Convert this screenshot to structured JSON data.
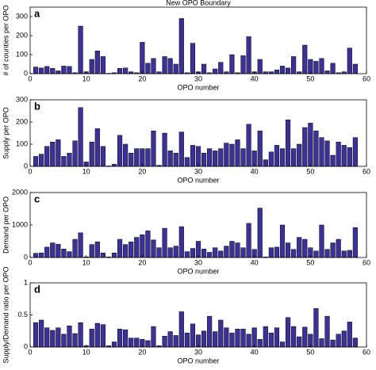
{
  "chart_data": [
    {
      "type": "bar",
      "title": "New OPO Boundary",
      "panel_label": "a",
      "ylabel": "# of counties per OPO",
      "xlabel": "OPO number",
      "color": "#3b3199",
      "x": [
        1,
        2,
        3,
        4,
        5,
        6,
        7,
        8,
        9,
        10,
        11,
        12,
        13,
        14,
        15,
        16,
        17,
        18,
        19,
        20,
        21,
        22,
        23,
        24,
        25,
        26,
        27,
        28,
        29,
        30,
        31,
        32,
        33,
        34,
        35,
        36,
        37,
        38,
        39,
        40,
        41,
        42,
        43,
        44,
        45,
        46,
        47,
        48,
        49,
        50,
        51,
        52,
        53,
        54,
        55,
        56,
        57,
        58
      ],
      "values": [
        35,
        30,
        38,
        28,
        15,
        40,
        38,
        5,
        250,
        10,
        75,
        120,
        90,
        2,
        5,
        28,
        30,
        10,
        5,
        165,
        55,
        80,
        10,
        90,
        80,
        50,
        290,
        5,
        160,
        10,
        50,
        5,
        25,
        60,
        10,
        100,
        5,
        95,
        195,
        10,
        75,
        10,
        10,
        20,
        40,
        30,
        90,
        10,
        150,
        75,
        65,
        80,
        15,
        55,
        5,
        10,
        135,
        50
      ],
      "xlim": [
        0,
        60
      ],
      "xticks": [
        0,
        10,
        20,
        30,
        40,
        50,
        60
      ],
      "ylim": [
        0,
        350
      ],
      "yticks": [
        0,
        100,
        200,
        300
      ]
    },
    {
      "type": "bar",
      "panel_label": "b",
      "ylabel": "Supply per OPO",
      "xlabel": "OPO number",
      "color": "#3b3199",
      "x": [
        1,
        2,
        3,
        4,
        5,
        6,
        7,
        8,
        9,
        10,
        11,
        12,
        13,
        14,
        15,
        16,
        17,
        18,
        19,
        20,
        21,
        22,
        23,
        24,
        25,
        26,
        27,
        28,
        29,
        30,
        31,
        32,
        33,
        34,
        35,
        36,
        37,
        38,
        39,
        40,
        41,
        42,
        43,
        44,
        45,
        46,
        47,
        48,
        49,
        50,
        51,
        52,
        53,
        54,
        55,
        56,
        57,
        58
      ],
      "values": [
        45,
        55,
        90,
        110,
        120,
        45,
        60,
        115,
        265,
        20,
        110,
        170,
        90,
        2,
        10,
        140,
        100,
        60,
        80,
        80,
        80,
        160,
        5,
        150,
        70,
        60,
        155,
        40,
        95,
        90,
        60,
        80,
        70,
        80,
        105,
        100,
        120,
        80,
        190,
        70,
        160,
        30,
        65,
        95,
        80,
        210,
        80,
        100,
        175,
        195,
        160,
        130,
        115,
        50,
        110,
        95,
        85,
        130
      ],
      "xlim": [
        0,
        60
      ],
      "xticks": [
        0,
        10,
        20,
        30,
        40,
        50,
        60
      ],
      "ylim": [
        0,
        300
      ],
      "yticks": [
        0,
        100,
        200,
        300
      ]
    },
    {
      "type": "bar",
      "panel_label": "c",
      "ylabel": "Demand per OPO",
      "xlabel": "OPO number",
      "color": "#3b3199",
      "x": [
        1,
        2,
        3,
        4,
        5,
        6,
        7,
        8,
        9,
        10,
        11,
        12,
        13,
        14,
        15,
        16,
        17,
        18,
        19,
        20,
        21,
        22,
        23,
        24,
        25,
        26,
        27,
        28,
        29,
        30,
        31,
        32,
        33,
        34,
        35,
        36,
        37,
        38,
        39,
        40,
        41,
        42,
        43,
        44,
        45,
        46,
        47,
        48,
        49,
        50,
        51,
        52,
        53,
        54,
        55,
        56,
        57,
        58
      ],
      "values": [
        130,
        140,
        320,
        450,
        410,
        260,
        180,
        560,
        760,
        20,
        400,
        480,
        140,
        20,
        140,
        560,
        400,
        480,
        620,
        700,
        820,
        540,
        300,
        900,
        300,
        350,
        950,
        180,
        280,
        500,
        260,
        160,
        300,
        200,
        350,
        500,
        450,
        300,
        1050,
        250,
        1520,
        20,
        300,
        320,
        1000,
        450,
        250,
        620,
        560,
        300,
        200,
        1000,
        250,
        450,
        560,
        200,
        220,
        920
      ],
      "xlim": [
        0,
        60
      ],
      "xticks": [
        0,
        10,
        20,
        30,
        40,
        50,
        60
      ],
      "ylim": [
        0,
        2000
      ],
      "yticks": [
        0,
        1000,
        2000
      ]
    },
    {
      "type": "bar",
      "panel_label": "d",
      "ylabel": "Supply/Demand ratio per OPO",
      "xlabel": "OPO number",
      "color": "#3b3199",
      "x": [
        1,
        2,
        3,
        4,
        5,
        6,
        7,
        8,
        9,
        10,
        11,
        12,
        13,
        14,
        15,
        16,
        17,
        18,
        19,
        20,
        21,
        22,
        23,
        24,
        25,
        26,
        27,
        28,
        29,
        30,
        31,
        32,
        33,
        34,
        35,
        36,
        37,
        38,
        39,
        40,
        41,
        42,
        43,
        44,
        45,
        46,
        47,
        48,
        49,
        50,
        51,
        52,
        53,
        54,
        55,
        56,
        57,
        58
      ],
      "values": [
        0.38,
        0.42,
        0.3,
        0.26,
        0.3,
        0.2,
        0.33,
        0.21,
        0.38,
        0.02,
        0.28,
        0.37,
        0.35,
        0.02,
        0.08,
        0.28,
        0.27,
        0.14,
        0.14,
        0.12,
        0.1,
        0.32,
        0.02,
        0.17,
        0.24,
        0.18,
        0.55,
        0.22,
        0.36,
        0.19,
        0.25,
        0.48,
        0.24,
        0.42,
        0.3,
        0.22,
        0.28,
        0.28,
        0.2,
        0.3,
        0.12,
        0.32,
        0.22,
        0.3,
        0.08,
        0.46,
        0.32,
        0.16,
        0.31,
        0.2,
        0.6,
        0.13,
        0.48,
        0.11,
        0.2,
        0.25,
        0.39,
        0.14
      ],
      "xlim": [
        0,
        60
      ],
      "xticks": [
        0,
        10,
        20,
        30,
        40,
        50,
        60
      ],
      "ylim": [
        0,
        1
      ],
      "yticks": [
        0,
        0.5,
        1
      ]
    }
  ]
}
